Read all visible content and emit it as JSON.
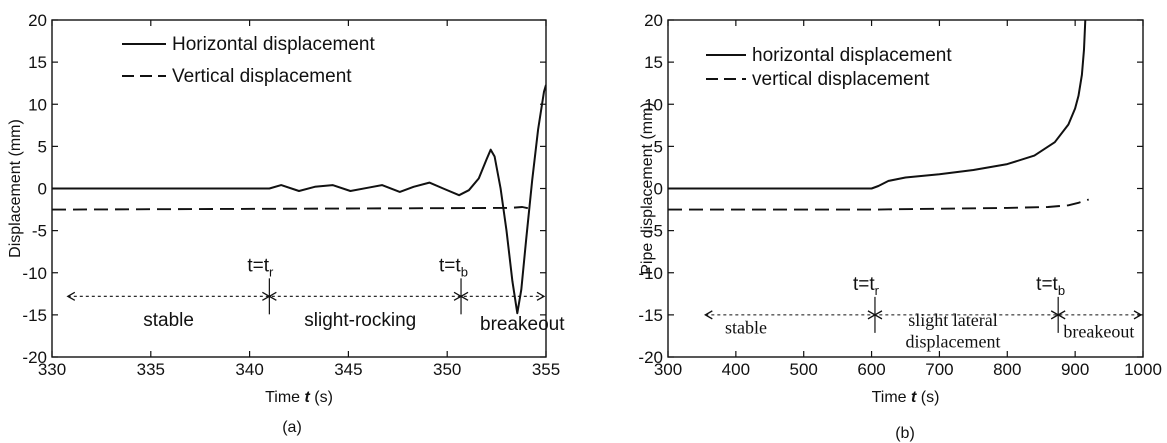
{
  "chart_data": [
    {
      "type": "line",
      "caption": "(a)",
      "xlabel": "Time t (s)",
      "ylabel": "Displacement (mm)",
      "xlim": [
        330,
        355
      ],
      "ylim": [
        -20,
        20
      ],
      "xticks": [
        330,
        335,
        340,
        345,
        350,
        355
      ],
      "yticks": [
        -20,
        -15,
        -10,
        -5,
        0,
        5,
        10,
        15,
        20
      ],
      "legend": "top-left",
      "series": [
        {
          "name": "Horizontal displacement",
          "style": "solid",
          "points": [
            [
              330,
              0
            ],
            [
              341,
              0
            ],
            [
              341.6,
              0.4
            ],
            [
              342.5,
              -0.3
            ],
            [
              343.3,
              0.2
            ],
            [
              344.2,
              0.4
            ],
            [
              345.1,
              -0.3
            ],
            [
              346,
              0.1
            ],
            [
              346.7,
              0.4
            ],
            [
              347.6,
              -0.4
            ],
            [
              348.3,
              0.2
            ],
            [
              349.1,
              0.7
            ],
            [
              349.8,
              0
            ],
            [
              350.6,
              -0.8
            ],
            [
              351.1,
              -0.2
            ],
            [
              351.6,
              1.2
            ],
            [
              352,
              3.5
            ],
            [
              352.2,
              4.6
            ],
            [
              352.4,
              3.8
            ],
            [
              352.7,
              0
            ],
            [
              353,
              -5
            ],
            [
              353.3,
              -11
            ],
            [
              353.55,
              -14.8
            ],
            [
              353.75,
              -12
            ],
            [
              354,
              -6
            ],
            [
              354.3,
              1
            ],
            [
              354.6,
              7
            ],
            [
              354.9,
              11.5
            ],
            [
              355,
              12.3
            ]
          ]
        },
        {
          "name": "Vertical displacement",
          "style": "dashed",
          "points": [
            [
              330,
              -2.5
            ],
            [
              353.2,
              -2.3
            ],
            [
              353.8,
              -2.2
            ],
            [
              354.2,
              -2.4
            ]
          ]
        }
      ],
      "annotations": {
        "arrow_y": -12.8,
        "arrow_x": [
          330.8,
          355
        ],
        "markers": [
          {
            "x": 341,
            "label": "t=t",
            "sub": "r"
          },
          {
            "x": 350.7,
            "label": "t=t",
            "sub": "b"
          }
        ],
        "phases": [
          {
            "label": "stable",
            "x": 335.9,
            "y": -16.3
          },
          {
            "label": "slight-rocking",
            "x": 345.6,
            "y": -16.3
          },
          {
            "label": "breakeout",
            "x": 353.8,
            "y": -16.8
          }
        ]
      }
    },
    {
      "type": "line",
      "caption": "(b)",
      "xlabel": "Time t (s)",
      "ylabel": "Pipe displacement (mm)",
      "xlim": [
        300,
        1000
      ],
      "ylim": [
        -20,
        20
      ],
      "xticks": [
        300,
        400,
        500,
        600,
        700,
        800,
        900,
        1000
      ],
      "yticks": [
        -20,
        -15,
        -10,
        -5,
        0,
        5,
        10,
        15,
        20
      ],
      "legend": "top-left",
      "series": [
        {
          "name": "horizontal displacement",
          "style": "solid",
          "points": [
            [
              300,
              0
            ],
            [
              600,
              0
            ],
            [
              610,
              0.3
            ],
            [
              625,
              0.9
            ],
            [
              650,
              1.3
            ],
            [
              700,
              1.7
            ],
            [
              750,
              2.2
            ],
            [
              800,
              2.9
            ],
            [
              840,
              3.9
            ],
            [
              870,
              5.5
            ],
            [
              890,
              7.6
            ],
            [
              900,
              9.5
            ],
            [
              905,
              11
            ],
            [
              910,
              13.5
            ],
            [
              913,
              16.5
            ],
            [
              915,
              20
            ]
          ]
        },
        {
          "name": "vertical displacement",
          "style": "dashed",
          "points": [
            [
              300,
              -2.5
            ],
            [
              600,
              -2.5
            ],
            [
              700,
              -2.4
            ],
            [
              800,
              -2.3
            ],
            [
              860,
              -2.2
            ],
            [
              890,
              -2
            ],
            [
              905,
              -1.7
            ],
            [
              920,
              -1.3
            ]
          ]
        }
      ],
      "annotations": {
        "arrow_y": -15,
        "arrow_x": [
          355,
          1000
        ],
        "markers": [
          {
            "x": 605,
            "label": "t=t",
            "sub": "r"
          },
          {
            "x": 875,
            "label": "t=t",
            "sub": "b"
          }
        ],
        "phases": [
          {
            "label": "stable",
            "x": 415,
            "y": -17.2
          },
          {
            "label": "slight lateral",
            "x": 720,
            "y": -16.3
          },
          {
            "label": "displacement",
            "x": 720,
            "y": -18.9
          },
          {
            "label": "breakeout",
            "x": 935,
            "y": -17.7
          }
        ]
      }
    }
  ]
}
